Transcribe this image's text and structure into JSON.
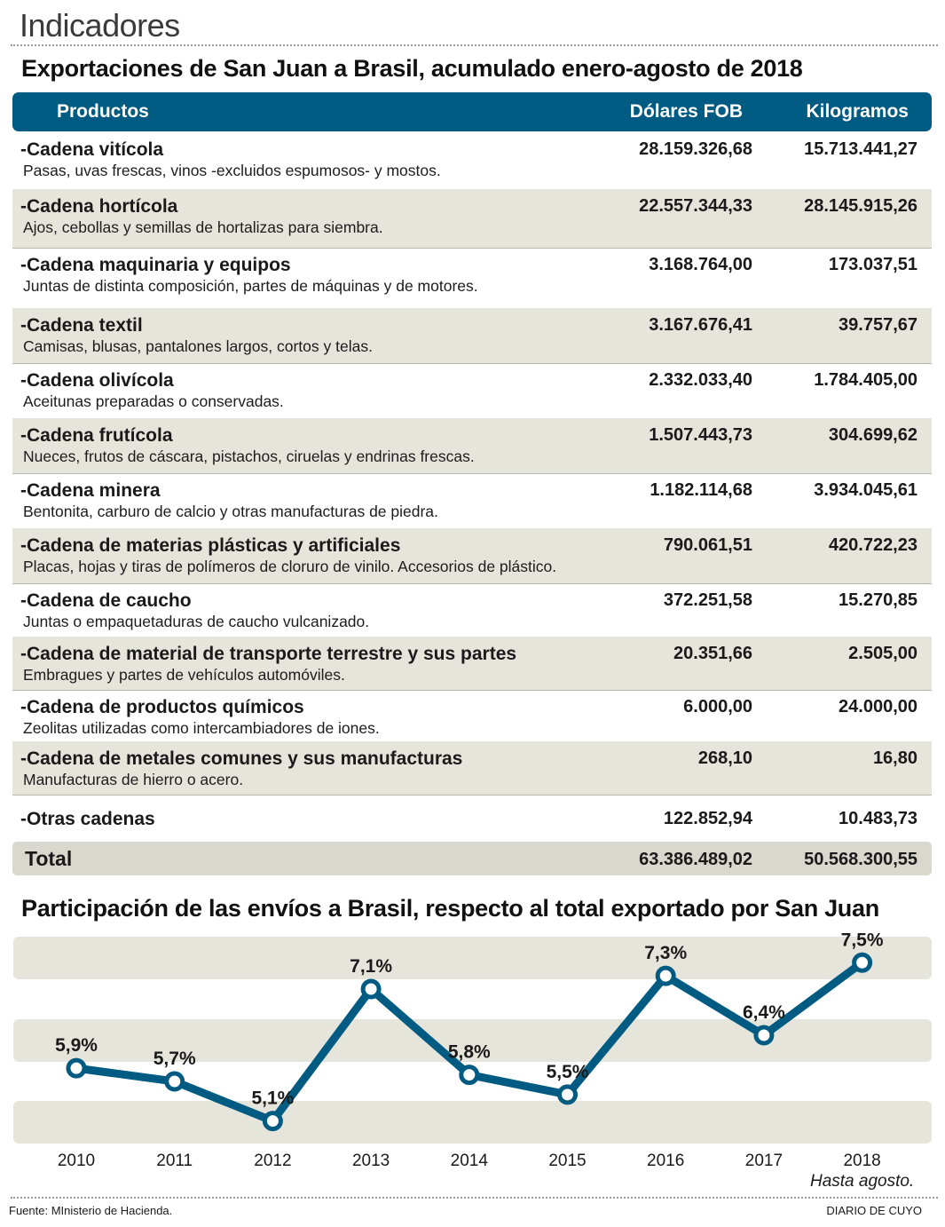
{
  "section": "Indicadores",
  "table_title": "Exportaciones de San Juan a Brasil, acumulado enero-agosto de 2018",
  "columns": {
    "products": "Productos",
    "usd": "Dólares FOB",
    "kg": "Kilogramos"
  },
  "rows": [
    {
      "name": "-Cadena vitícola",
      "desc": "Pasas, uvas frescas, vinos -excluidos espumosos- y mostos.",
      "usd": "28.159.326,68",
      "kg": "15.713.441,27"
    },
    {
      "name": "-Cadena hortícola",
      "desc": "Ajos, cebollas y semillas de hortalizas para siembra.",
      "usd": "22.557.344,33",
      "kg": "28.145.915,26"
    },
    {
      "name": "-Cadena maquinaria y equipos",
      "desc": "Juntas de distinta composición, partes de máquinas y de motores.",
      "usd": "3.168.764,00",
      "kg": "173.037,51"
    },
    {
      "name": "-Cadena textil",
      "desc": "Camisas, blusas, pantalones largos, cortos y telas.",
      "usd": "3.167.676,41",
      "kg": "39.757,67"
    },
    {
      "name": "-Cadena olivícola",
      "desc": "Aceitunas preparadas o conservadas.",
      "usd": "2.332.033,40",
      "kg": "1.784.405,00"
    },
    {
      "name": "-Cadena frutícola",
      "desc": "Nueces, frutos de cáscara, pistachos, ciruelas y endrinas frescas.",
      "usd": "1.507.443,73",
      "kg": "304.699,62"
    },
    {
      "name": "-Cadena minera",
      "desc": "Bentonita, carburo de calcio y otras manufacturas de piedra.",
      "usd": "1.182.114,68",
      "kg": "3.934.045,61"
    },
    {
      "name": "-Cadena de materias plásticas y artificiales",
      "desc": "Placas, hojas y tiras de polímeros de cloruro de vinilo. Accesorios de plástico.",
      "usd": "790.061,51",
      "kg": "420.722,23"
    },
    {
      "name": "-Cadena de caucho",
      "desc": "Juntas o empaquetaduras de caucho vulcanizado.",
      "usd": "372.251,58",
      "kg": "15.270,85"
    },
    {
      "name": "-Cadena de material de transporte terrestre y sus partes",
      "desc": "Embragues y partes de vehículos automóviles.",
      "usd": "20.351,66",
      "kg": "2.505,00"
    },
    {
      "name": "-Cadena de productos químicos",
      "desc": "Zeolitas utilizadas como intercambiadores de iones.",
      "usd": "6.000,00",
      "kg": "24.000,00"
    },
    {
      "name": "-Cadena de metales comunes y sus manufacturas",
      "desc": "Manufacturas de hierro o acero.",
      "usd": "268,10",
      "kg": "16,80"
    },
    {
      "name": "-Otras cadenas",
      "desc": "",
      "usd": "122.852,94",
      "kg": "10.483,73"
    }
  ],
  "total": {
    "label": "Total",
    "usd": "63.386.489,02",
    "kg": "50.568.300,55"
  },
  "chart_title": "Participación de las envíos a Brasil, respecto al total exportado por San Juan",
  "chart_data": {
    "type": "line",
    "title": "Participación de las envíos a Brasil, respecto al total exportado por San Juan",
    "x": [
      "2010",
      "2011",
      "2012",
      "2013",
      "2014",
      "2015",
      "2016",
      "2017",
      "2018"
    ],
    "values": [
      5.9,
      5.7,
      5.1,
      7.1,
      5.8,
      5.5,
      7.3,
      6.4,
      7.5
    ],
    "labels": [
      "5,9%",
      "5,7%",
      "5,1%",
      "7,1%",
      "5,8%",
      "5,5%",
      "7,3%",
      "6,4%",
      "7,5%"
    ],
    "ylim": [
      5.0,
      7.8
    ],
    "note": "Hasta agosto.",
    "xlabel": "",
    "ylabel": ""
  },
  "source": "Fuente: MInisterio de Hacienda.",
  "credit": "DIARIO DE CUYO",
  "colors": {
    "accent": "#005b82",
    "band": "#e6e5dc",
    "total_band": "#d9d8ce"
  }
}
